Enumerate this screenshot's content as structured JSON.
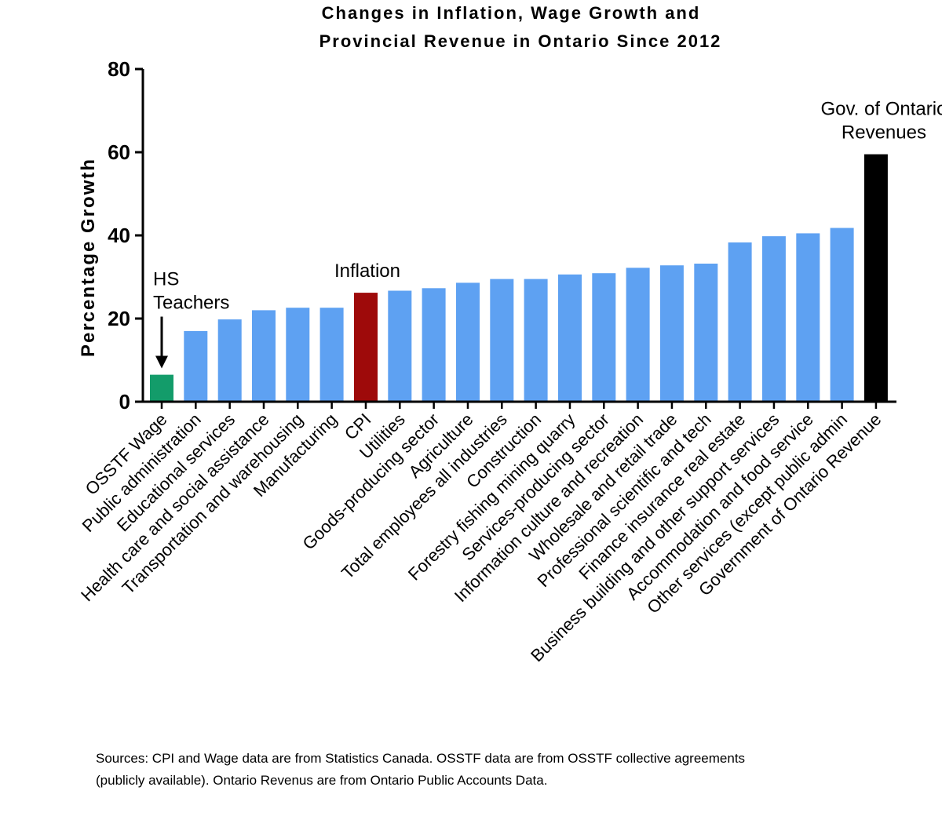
{
  "chart_data": {
    "type": "bar",
    "title": [
      "Changes in Inflation, Wage Growth and",
      "Provincial Revenue in Ontario Since 2012"
    ],
    "ylabel": "Percentage Growth",
    "xlabel": "",
    "ylim": [
      0,
      80
    ],
    "yticks": [
      0,
      20,
      40,
      60,
      80
    ],
    "grid": false,
    "legend": "none",
    "categories": [
      "OSSTF Wage",
      "Public administration",
      "Educational services",
      "Health care and social assistance",
      "Transportation and warehousing",
      "Manufacturing",
      "CPI",
      "Utilities",
      "Goods-producing sector",
      "Agriculture",
      "Total employees all industries",
      "Construction",
      "Forestry fishing mining quarry",
      "Services-producing sector",
      "Information culture and recreation",
      "Wholesale and retail trade",
      "Professional scientific and tech",
      "Finance insurance real estate",
      "Business building and other support services",
      "Accommodation and food service",
      "Other services (except public admin",
      "Government of Ontario Revenue"
    ],
    "values": [
      6.5,
      17,
      19.8,
      22,
      22.6,
      22.6,
      26.2,
      26.7,
      27.3,
      28.6,
      29.5,
      29.5,
      30.6,
      30.9,
      32.2,
      32.8,
      33.2,
      38.3,
      39.8,
      40.5,
      41.8,
      59.5
    ],
    "bar_colors": [
      "#139c6a",
      "#5ea1f2",
      "#5ea1f2",
      "#5ea1f2",
      "#5ea1f2",
      "#5ea1f2",
      "#9e0a0a",
      "#5ea1f2",
      "#5ea1f2",
      "#5ea1f2",
      "#5ea1f2",
      "#5ea1f2",
      "#5ea1f2",
      "#5ea1f2",
      "#5ea1f2",
      "#5ea1f2",
      "#5ea1f2",
      "#5ea1f2",
      "#5ea1f2",
      "#5ea1f2",
      "#5ea1f2",
      "#000000"
    ],
    "annotations": [
      {
        "lines": [
          "HS",
          "Teachers"
        ],
        "category": "OSSTF Wage",
        "arrow": true
      },
      {
        "lines": [
          "Inflation"
        ],
        "category": "CPI",
        "arrow": false
      },
      {
        "lines": [
          "Gov. of Ontario",
          "Revenues"
        ],
        "category": "Government of Ontario Revenue",
        "arrow": false
      }
    ]
  },
  "sources": [
    "Sources: CPI and Wage data are from Statistics Canada. OSSTF data are from OSSTF collective agreements",
    "(publicly available).   Ontario Revenus are from Ontario Public Accounts Data."
  ]
}
